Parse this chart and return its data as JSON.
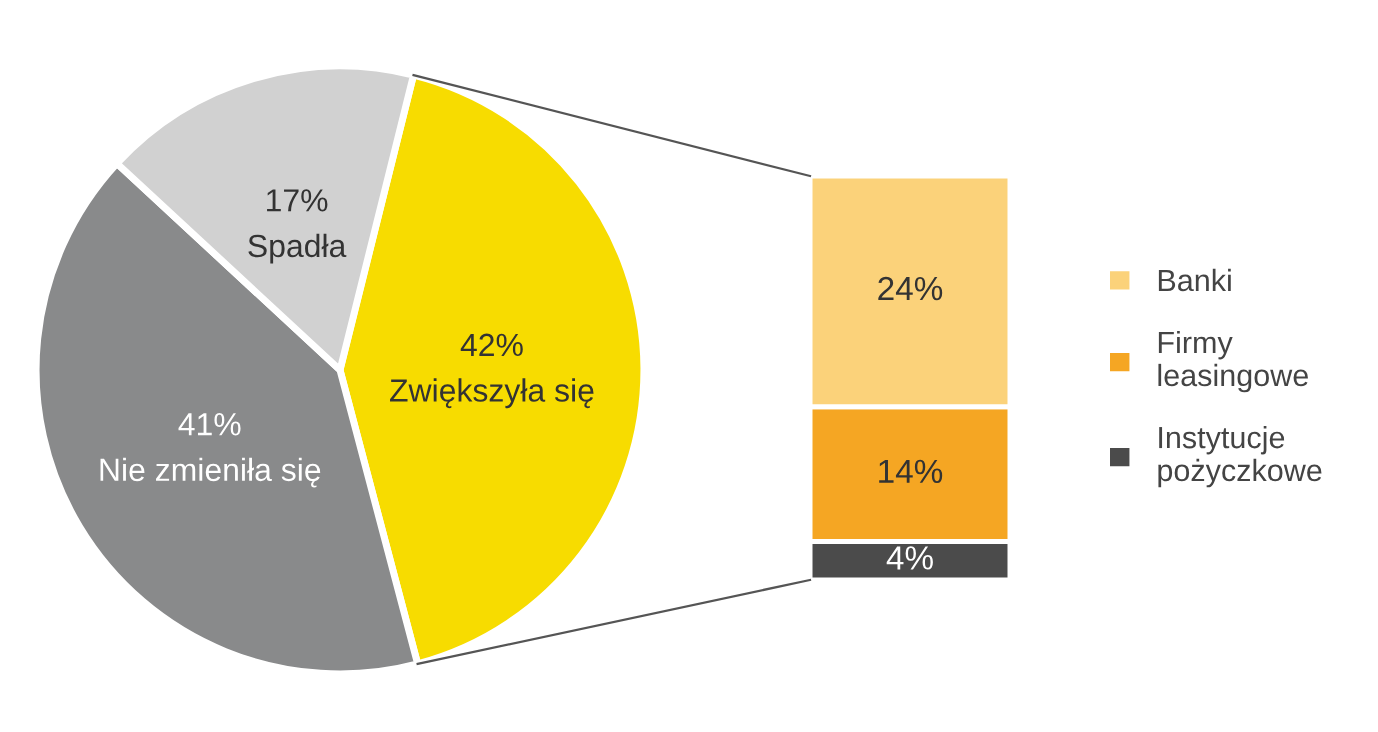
{
  "chart_data": [
    {
      "type": "pie",
      "categories": [
        "Zwiększyła się",
        "Nie zmieniła się",
        "Spadła"
      ],
      "values": [
        42,
        41,
        17
      ],
      "value_labels": [
        "42%",
        "41%",
        "17%"
      ],
      "colors": [
        "#f7dc00",
        "#898a8b",
        "#d1d1d1"
      ]
    },
    {
      "type": "bar",
      "stacked": true,
      "categories": [
        null
      ],
      "legend": "right",
      "series": [
        {
          "name": "Instytucje pożyczkowe",
          "color": "#4b4b4b",
          "values": [
            4
          ],
          "value_labels": [
            "4%"
          ]
        },
        {
          "name": "Firmy leasingowe",
          "color": "#f5a623",
          "values": [
            14
          ],
          "value_labels": [
            "14%"
          ]
        },
        {
          "name": "Banki",
          "color": "#fbd27a",
          "values": [
            24
          ],
          "value_labels": [
            "24%"
          ]
        }
      ]
    }
  ]
}
